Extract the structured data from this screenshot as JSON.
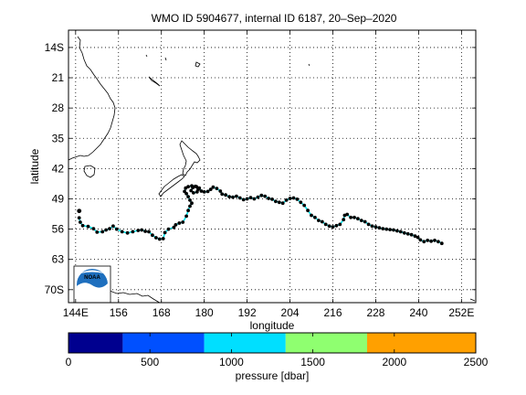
{
  "title": "WMO ID 5904677, internal ID 6187, 20–Sep–2020",
  "map": {
    "xlabel": "longitude",
    "ylabel": "latitude",
    "lon_range": [
      142,
      256
    ],
    "lat_range": [
      -73,
      -10
    ],
    "x_ticks": [
      {
        "value": 144,
        "label": "144E"
      },
      {
        "value": 156,
        "label": "156"
      },
      {
        "value": 168,
        "label": "168"
      },
      {
        "value": 180,
        "label": "180"
      },
      {
        "value": 192,
        "label": "192"
      },
      {
        "value": 204,
        "label": "204"
      },
      {
        "value": 216,
        "label": "216"
      },
      {
        "value": 228,
        "label": "228"
      },
      {
        "value": 240,
        "label": "240"
      },
      {
        "value": 252,
        "label": "252E"
      }
    ],
    "y_ticks": [
      {
        "value": -14,
        "label": "14S"
      },
      {
        "value": -21,
        "label": "21"
      },
      {
        "value": -28,
        "label": "28"
      },
      {
        "value": -35,
        "label": "35"
      },
      {
        "value": -42,
        "label": "42"
      },
      {
        "value": -49,
        "label": "49"
      },
      {
        "value": -56,
        "label": "56"
      },
      {
        "value": -63,
        "label": "63"
      },
      {
        "value": -70,
        "label": "70S"
      }
    ],
    "grid": "dotted",
    "track_color": "#00e5ee",
    "point_color": "#000000",
    "track": [
      [
        145.0,
        -53.4
      ],
      [
        145.3,
        -54.4
      ],
      [
        146.0,
        -55.2
      ],
      [
        147.5,
        -55.4
      ],
      [
        149.0,
        -55.9
      ],
      [
        150.0,
        -56.7
      ],
      [
        151.5,
        -56.6
      ],
      [
        152.5,
        -56.2
      ],
      [
        153.5,
        -55.9
      ],
      [
        154.5,
        -55.3
      ],
      [
        155.5,
        -56.0
      ],
      [
        157.0,
        -56.6
      ],
      [
        158.5,
        -56.9
      ],
      [
        160.0,
        -56.6
      ],
      [
        161.5,
        -56.3
      ],
      [
        162.5,
        -56.2
      ],
      [
        163.5,
        -56.5
      ],
      [
        164.5,
        -56.6
      ],
      [
        165.5,
        -57.4
      ],
      [
        166.5,
        -58.0
      ],
      [
        167.5,
        -58.3
      ],
      [
        168.5,
        -58.2
      ],
      [
        169.0,
        -56.8
      ],
      [
        170.0,
        -56.0
      ],
      [
        171.5,
        -55.6
      ],
      [
        172.0,
        -55.0
      ],
      [
        173.0,
        -54.6
      ],
      [
        174.0,
        -54.4
      ],
      [
        175.0,
        -53.0
      ],
      [
        175.5,
        -51.7
      ],
      [
        176.0,
        -50.7
      ],
      [
        176.5,
        -50.0
      ],
      [
        176.0,
        -49.3
      ],
      [
        175.5,
        -48.5
      ],
      [
        175.0,
        -47.8
      ],
      [
        174.5,
        -47.3
      ],
      [
        174.8,
        -46.5
      ],
      [
        175.5,
        -46.2
      ],
      [
        176.5,
        -46.0
      ],
      [
        177.5,
        -46.1
      ],
      [
        178.3,
        -46.8
      ],
      [
        178.0,
        -47.4
      ],
      [
        177.0,
        -47.6
      ],
      [
        176.3,
        -47.1
      ],
      [
        176.8,
        -46.4
      ],
      [
        177.8,
        -46.2
      ],
      [
        178.6,
        -46.5
      ],
      [
        179.2,
        -47.2
      ],
      [
        180.0,
        -47.4
      ],
      [
        181.0,
        -47.3
      ],
      [
        181.8,
        -46.8
      ],
      [
        182.5,
        -46.3
      ],
      [
        183.5,
        -46.6
      ],
      [
        184.5,
        -47.2
      ],
      [
        185.0,
        -47.9
      ],
      [
        186.0,
        -48.1
      ],
      [
        187.0,
        -48.5
      ],
      [
        188.0,
        -48.6
      ],
      [
        189.0,
        -48.4
      ],
      [
        190.0,
        -48.8
      ],
      [
        191.0,
        -49.2
      ],
      [
        192.0,
        -49.0
      ],
      [
        193.0,
        -48.7
      ],
      [
        194.0,
        -49.0
      ],
      [
        195.0,
        -48.6
      ],
      [
        196.0,
        -48.2
      ],
      [
        197.0,
        -48.4
      ],
      [
        198.0,
        -48.9
      ],
      [
        199.0,
        -49.1
      ],
      [
        200.0,
        -49.6
      ],
      [
        201.0,
        -49.8
      ],
      [
        202.0,
        -50.0
      ],
      [
        203.0,
        -49.3
      ],
      [
        204.0,
        -48.9
      ],
      [
        205.0,
        -48.8
      ],
      [
        206.0,
        -49.1
      ],
      [
        207.0,
        -49.8
      ],
      [
        208.0,
        -50.5
      ],
      [
        209.0,
        -51.7
      ],
      [
        210.0,
        -52.8
      ],
      [
        211.0,
        -53.3
      ],
      [
        212.0,
        -54.0
      ],
      [
        213.0,
        -54.3
      ],
      [
        214.0,
        -54.9
      ],
      [
        215.0,
        -55.3
      ],
      [
        216.0,
        -55.5
      ],
      [
        217.0,
        -55.2
      ],
      [
        218.0,
        -54.9
      ],
      [
        219.0,
        -53.8
      ],
      [
        219.3,
        -52.8
      ],
      [
        220.0,
        -52.6
      ],
      [
        221.0,
        -53.3
      ],
      [
        222.0,
        -53.3
      ],
      [
        223.0,
        -53.6
      ],
      [
        224.0,
        -54.0
      ],
      [
        225.0,
        -54.3
      ],
      [
        226.0,
        -54.9
      ],
      [
        227.0,
        -55.3
      ],
      [
        228.0,
        -55.5
      ],
      [
        229.0,
        -55.7
      ],
      [
        230.0,
        -55.9
      ],
      [
        231.0,
        -56.0
      ],
      [
        232.0,
        -56.1
      ],
      [
        233.0,
        -56.2
      ],
      [
        234.0,
        -56.4
      ],
      [
        235.0,
        -56.6
      ],
      [
        236.0,
        -56.9
      ],
      [
        237.0,
        -57.1
      ],
      [
        238.0,
        -57.3
      ],
      [
        239.0,
        -57.6
      ],
      [
        239.8,
        -57.9
      ],
      [
        240.5,
        -58.5
      ],
      [
        241.5,
        -58.9
      ],
      [
        242.5,
        -58.6
      ],
      [
        243.5,
        -58.8
      ],
      [
        244.5,
        -58.6
      ],
      [
        245.5,
        -58.9
      ],
      [
        246.5,
        -59.3
      ]
    ],
    "start_point": [
      145.0,
      -51.8
    ]
  },
  "colorbar": {
    "label": "pressure [dbar]",
    "ticks": [
      0,
      500,
      1000,
      1500,
      2000,
      2500
    ],
    "segments": [
      {
        "from": 0,
        "to": 333,
        "color": "#00008f"
      },
      {
        "from": 333,
        "to": 833,
        "color": "#0050ff"
      },
      {
        "from": 833,
        "to": 1333,
        "color": "#00dfff"
      },
      {
        "from": 1333,
        "to": 1833,
        "color": "#8fff70"
      },
      {
        "from": 1833,
        "to": 2500,
        "color": "#ffa000"
      }
    ]
  },
  "logo": {
    "text": "NOAA",
    "outer_color": "#1e6fbe",
    "wave_color": "#2a8fd8",
    "lower_color": "#ffffff"
  }
}
